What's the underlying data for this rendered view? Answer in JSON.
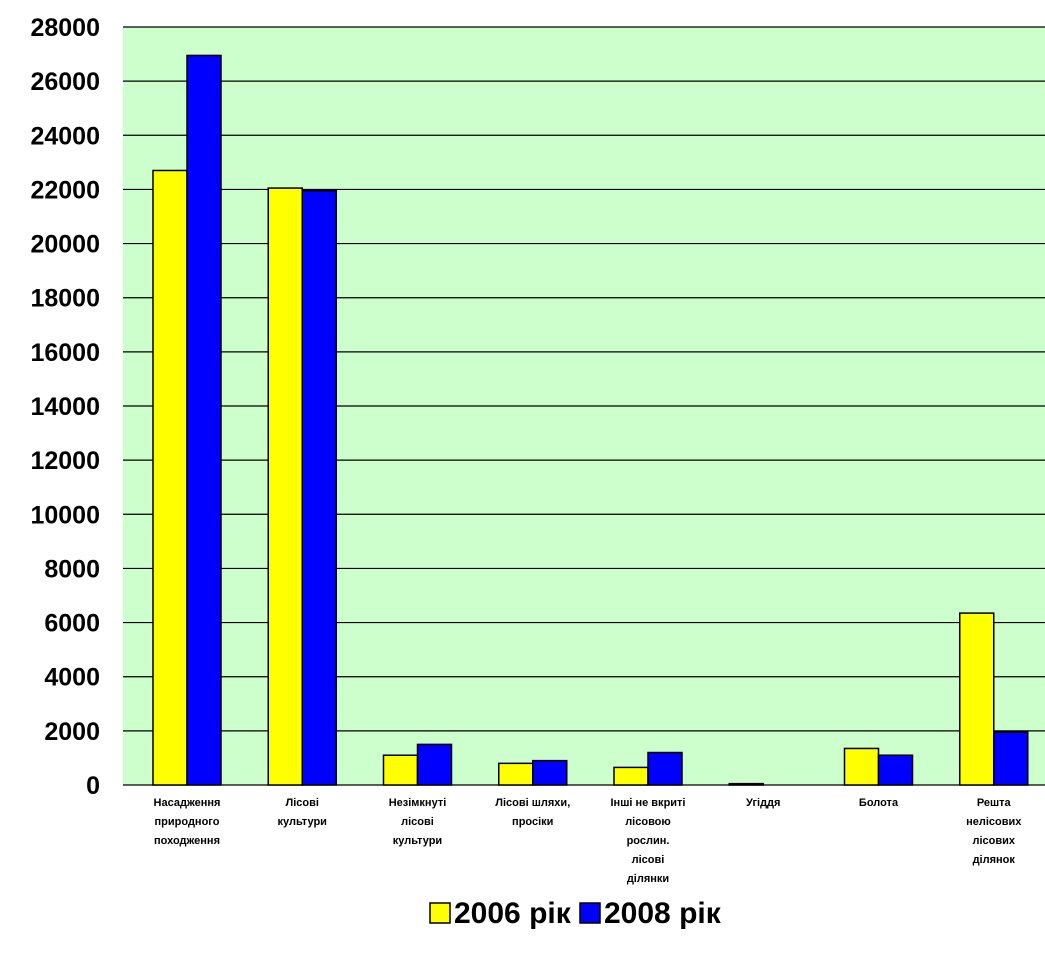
{
  "chart_data": {
    "type": "bar",
    "title": "",
    "xlabel": "",
    "ylabel": "",
    "ylim": [
      0,
      28000
    ],
    "ytick_step": 2000,
    "grid": true,
    "legend_position": "bottom",
    "categories": [
      [
        "Насадження",
        "природного",
        "походження"
      ],
      [
        "Лісові",
        "культури"
      ],
      [
        "Незімкнуті",
        "лісові",
        "культури"
      ],
      [
        "Лісові шляхи,",
        "просіки"
      ],
      [
        "Інші не вкриті",
        "лісовою",
        "рослин.",
        "лісові",
        "ділянки"
      ],
      [
        "Угіддя"
      ],
      [
        "Болота"
      ],
      [
        "Решта",
        "нелісових",
        "лісових",
        "ділянок"
      ]
    ],
    "series": [
      {
        "name": "2006 рік",
        "color": "#ffff00",
        "values": [
          22700,
          22050,
          1100,
          800,
          650,
          50,
          1350,
          6350
        ]
      },
      {
        "name": "2008 рік",
        "color": "#0000ff",
        "values": [
          26950,
          21950,
          1500,
          900,
          1200,
          0,
          1100,
          1950
        ]
      }
    ],
    "colors": {
      "plot_background": "#ccffcc",
      "gridline": "#000000",
      "bar_stroke": "#000000"
    }
  }
}
